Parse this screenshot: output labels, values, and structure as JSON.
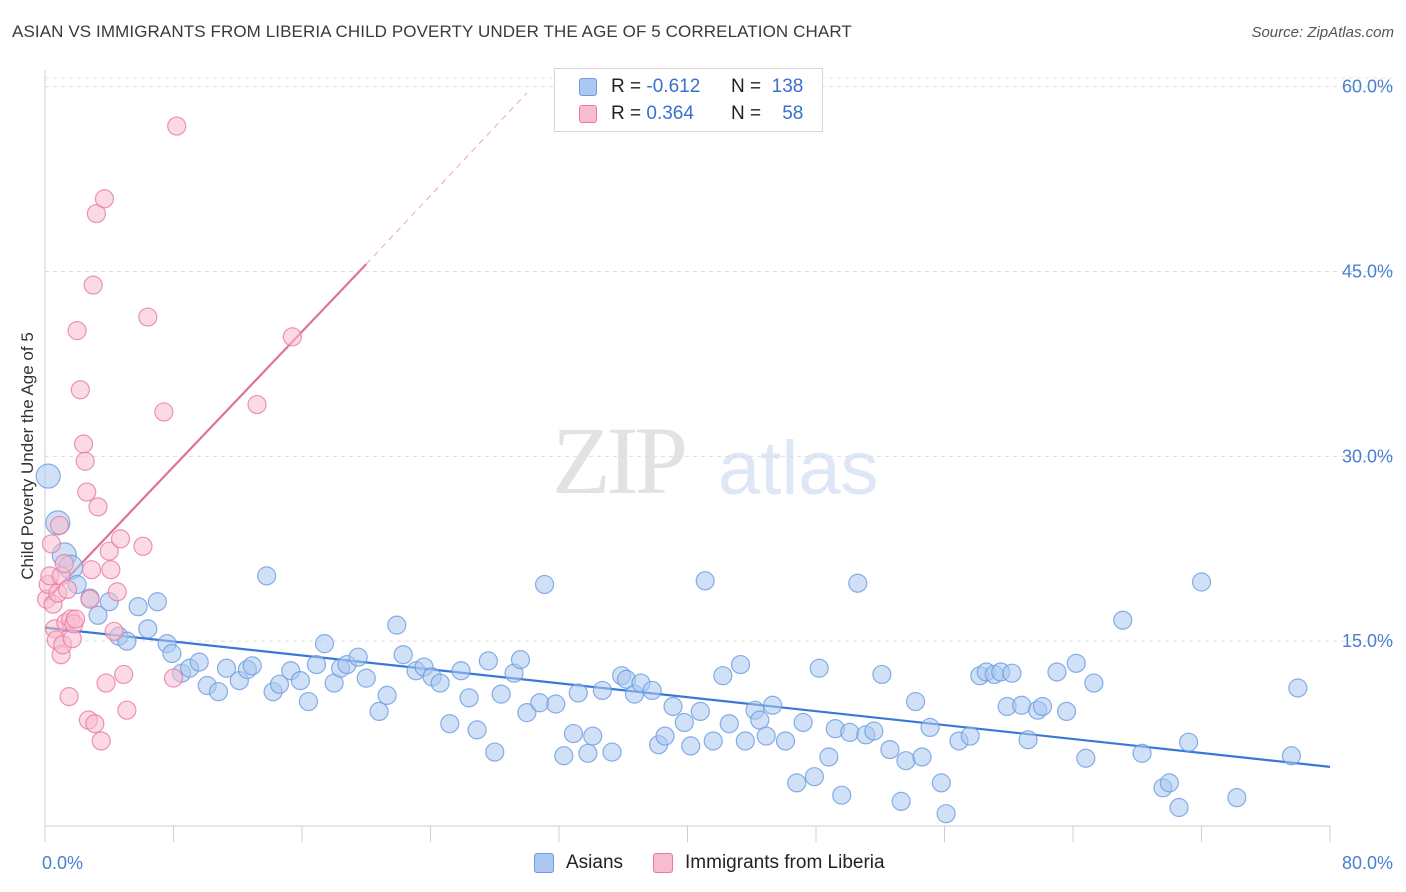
{
  "header": {
    "title": "ASIAN VS IMMIGRANTS FROM LIBERIA CHILD POVERTY UNDER THE AGE OF 5 CORRELATION CHART",
    "source": "Source: ZipAtlas.com"
  },
  "watermark": {
    "part1": "ZIP",
    "part2": "atlas"
  },
  "legend": {
    "rows": [
      {
        "r_label": "R =",
        "r_value": "-0.612",
        "n_label": "N =",
        "n_value": "138",
        "color": "#aac8f0"
      },
      {
        "r_label": "R =",
        "r_value": "0.364",
        "n_label": "N =",
        "n_value": "58",
        "color": "#f7bcd0"
      }
    ]
  },
  "bottom_legend": {
    "items": [
      "Asians",
      "Immigrants from Liberia"
    ]
  },
  "chart_data": {
    "type": "scatter",
    "xlabel": "",
    "ylabel": "Child Poverty Under the Age of 5",
    "xlim": [
      0,
      80
    ],
    "ylim": [
      0,
      62
    ],
    "x_tick_labels": [
      "0.0%",
      "80.0%"
    ],
    "y_ticks": [
      15,
      30,
      45,
      60
    ],
    "y_tick_labels": [
      "15.0%",
      "30.0%",
      "45.0%",
      "60.0%"
    ],
    "grid": "horizontal dashed",
    "legend_placement": "top-center",
    "series": [
      {
        "name": "Asians",
        "color": "#6a9be0",
        "fill": "#aac8f0",
        "trend": {
          "x": [
            0,
            80
          ],
          "y": [
            16.1,
            4.8
          ]
        },
        "points": [
          [
            0.2,
            28.4
          ],
          [
            0.8,
            24.6
          ],
          [
            1.2,
            22.0
          ],
          [
            1.6,
            21.0
          ],
          [
            2.0,
            19.6
          ],
          [
            2.8,
            18.5
          ],
          [
            3.3,
            17.1
          ],
          [
            4.0,
            18.2
          ],
          [
            4.6,
            15.4
          ],
          [
            5.1,
            15.0
          ],
          [
            5.8,
            17.8
          ],
          [
            6.4,
            16.0
          ],
          [
            7.0,
            18.2
          ],
          [
            7.6,
            14.8
          ],
          [
            7.9,
            14.0
          ],
          [
            8.5,
            12.4
          ],
          [
            9.0,
            12.8
          ],
          [
            9.6,
            13.3
          ],
          [
            10.1,
            11.4
          ],
          [
            10.8,
            10.9
          ],
          [
            11.3,
            12.8
          ],
          [
            12.1,
            11.8
          ],
          [
            12.6,
            12.7
          ],
          [
            12.9,
            13.0
          ],
          [
            13.8,
            20.3
          ],
          [
            14.2,
            10.9
          ],
          [
            14.6,
            11.5
          ],
          [
            15.3,
            12.6
          ],
          [
            15.9,
            11.8
          ],
          [
            16.4,
            10.1
          ],
          [
            16.9,
            13.1
          ],
          [
            17.4,
            14.8
          ],
          [
            18.0,
            11.6
          ],
          [
            18.4,
            12.8
          ],
          [
            18.8,
            13.1
          ],
          [
            19.5,
            13.7
          ],
          [
            20.0,
            12.0
          ],
          [
            20.8,
            9.3
          ],
          [
            21.3,
            10.6
          ],
          [
            21.9,
            16.3
          ],
          [
            22.3,
            13.9
          ],
          [
            23.1,
            12.6
          ],
          [
            23.6,
            12.9
          ],
          [
            24.1,
            12.1
          ],
          [
            24.6,
            11.6
          ],
          [
            25.2,
            8.3
          ],
          [
            25.9,
            12.6
          ],
          [
            26.4,
            10.4
          ],
          [
            26.9,
            7.8
          ],
          [
            27.6,
            13.4
          ],
          [
            28.0,
            6.0
          ],
          [
            28.4,
            10.7
          ],
          [
            29.2,
            12.4
          ],
          [
            29.6,
            13.5
          ],
          [
            30.0,
            9.2
          ],
          [
            30.8,
            10.0
          ],
          [
            31.1,
            19.6
          ],
          [
            31.8,
            9.9
          ],
          [
            32.3,
            5.7
          ],
          [
            32.9,
            7.5
          ],
          [
            33.2,
            10.8
          ],
          [
            33.8,
            5.9
          ],
          [
            34.1,
            7.3
          ],
          [
            34.7,
            11.0
          ],
          [
            35.3,
            6.0
          ],
          [
            35.9,
            12.2
          ],
          [
            36.2,
            11.9
          ],
          [
            36.7,
            10.7
          ],
          [
            37.1,
            11.6
          ],
          [
            37.8,
            11.0
          ],
          [
            38.2,
            6.6
          ],
          [
            38.6,
            7.3
          ],
          [
            39.1,
            9.7
          ],
          [
            39.8,
            8.4
          ],
          [
            40.2,
            6.5
          ],
          [
            40.8,
            9.3
          ],
          [
            41.1,
            19.9
          ],
          [
            41.6,
            6.9
          ],
          [
            42.2,
            12.2
          ],
          [
            42.6,
            8.3
          ],
          [
            43.3,
            13.1
          ],
          [
            43.6,
            6.9
          ],
          [
            44.2,
            9.4
          ],
          [
            44.5,
            8.6
          ],
          [
            44.9,
            7.3
          ],
          [
            45.3,
            9.8
          ],
          [
            46.1,
            6.9
          ],
          [
            46.8,
            3.5
          ],
          [
            47.2,
            8.4
          ],
          [
            47.9,
            4.0
          ],
          [
            48.2,
            12.8
          ],
          [
            48.8,
            5.6
          ],
          [
            49.2,
            7.9
          ],
          [
            49.6,
            2.5
          ],
          [
            50.1,
            7.6
          ],
          [
            50.6,
            19.7
          ],
          [
            51.1,
            7.4
          ],
          [
            51.6,
            7.7
          ],
          [
            52.1,
            12.3
          ],
          [
            52.6,
            6.2
          ],
          [
            53.3,
            2.0
          ],
          [
            53.6,
            5.3
          ],
          [
            54.2,
            10.1
          ],
          [
            54.6,
            5.6
          ],
          [
            55.1,
            8.0
          ],
          [
            55.8,
            3.5
          ],
          [
            56.1,
            1.0
          ],
          [
            56.9,
            6.9
          ],
          [
            57.6,
            7.3
          ],
          [
            58.2,
            12.2
          ],
          [
            58.6,
            12.5
          ],
          [
            59.1,
            12.3
          ],
          [
            59.5,
            12.5
          ],
          [
            59.9,
            9.7
          ],
          [
            60.2,
            12.4
          ],
          [
            60.8,
            9.8
          ],
          [
            61.2,
            7.0
          ],
          [
            61.8,
            9.4
          ],
          [
            62.1,
            9.7
          ],
          [
            63.0,
            12.5
          ],
          [
            63.6,
            9.3
          ],
          [
            64.2,
            13.2
          ],
          [
            64.8,
            5.5
          ],
          [
            65.3,
            11.6
          ],
          [
            67.1,
            16.7
          ],
          [
            68.3,
            5.9
          ],
          [
            69.6,
            3.1
          ],
          [
            70.0,
            3.5
          ],
          [
            70.6,
            1.5
          ],
          [
            71.2,
            6.8
          ],
          [
            72.0,
            19.8
          ],
          [
            74.2,
            2.3
          ],
          [
            77.6,
            5.7
          ],
          [
            78.0,
            11.2
          ]
        ]
      },
      {
        "name": "Immigrants from Liberia",
        "color": "#e87aa0",
        "fill": "#f7bcd0",
        "trend": {
          "x": [
            0,
            20.0
          ],
          "y": [
            18.2,
            45.6
          ]
        },
        "trend_dashed": {
          "x": [
            20.0,
            30.0
          ],
          "y": [
            45.6,
            59.5
          ]
        },
        "points": [
          [
            0.1,
            18.4
          ],
          [
            0.2,
            19.6
          ],
          [
            0.3,
            20.3
          ],
          [
            0.4,
            22.9
          ],
          [
            0.5,
            18.0
          ],
          [
            0.6,
            16.0
          ],
          [
            0.7,
            15.1
          ],
          [
            0.8,
            18.9
          ],
          [
            0.9,
            24.4
          ],
          [
            1.0,
            13.9
          ],
          [
            1.0,
            20.3
          ],
          [
            1.1,
            14.7
          ],
          [
            1.2,
            21.3
          ],
          [
            1.3,
            16.5
          ],
          [
            1.4,
            19.2
          ],
          [
            1.5,
            10.5
          ],
          [
            1.6,
            16.8
          ],
          [
            1.7,
            15.2
          ],
          [
            1.8,
            16.4
          ],
          [
            1.9,
            16.8
          ],
          [
            2.0,
            40.2
          ],
          [
            2.2,
            35.4
          ],
          [
            2.4,
            31.0
          ],
          [
            2.5,
            29.6
          ],
          [
            2.6,
            27.1
          ],
          [
            2.7,
            8.6
          ],
          [
            2.8,
            18.4
          ],
          [
            2.9,
            20.8
          ],
          [
            3.0,
            43.9
          ],
          [
            3.1,
            8.3
          ],
          [
            3.2,
            49.7
          ],
          [
            3.3,
            25.9
          ],
          [
            3.5,
            6.9
          ],
          [
            3.7,
            50.9
          ],
          [
            3.8,
            11.6
          ],
          [
            4.0,
            22.3
          ],
          [
            4.1,
            20.8
          ],
          [
            4.3,
            15.8
          ],
          [
            4.5,
            19.0
          ],
          [
            4.7,
            23.3
          ],
          [
            4.9,
            12.3
          ],
          [
            5.1,
            9.4
          ],
          [
            6.1,
            22.7
          ],
          [
            6.4,
            41.3
          ],
          [
            7.4,
            33.6
          ],
          [
            8.0,
            12.0
          ],
          [
            8.2,
            56.8
          ],
          [
            13.2,
            34.2
          ],
          [
            15.4,
            39.7
          ]
        ]
      }
    ]
  }
}
